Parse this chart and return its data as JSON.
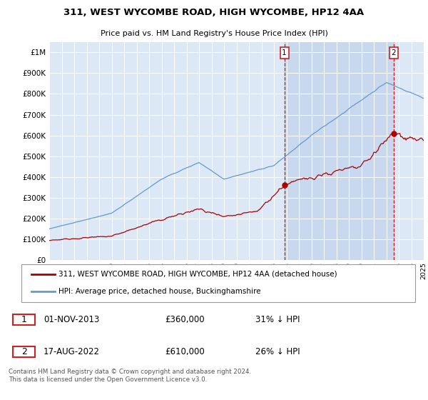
{
  "title": "311, WEST WYCOMBE ROAD, HIGH WYCOMBE, HP12 4AA",
  "subtitle": "Price paid vs. HM Land Registry's House Price Index (HPI)",
  "ylim": [
    0,
    1050000
  ],
  "yticks": [
    0,
    100000,
    200000,
    300000,
    400000,
    500000,
    600000,
    700000,
    800000,
    900000,
    1000000
  ],
  "ytick_labels": [
    "£0",
    "£100K",
    "£200K",
    "£300K",
    "£400K",
    "£500K",
    "£600K",
    "£700K",
    "£800K",
    "£900K",
    "£1M"
  ],
  "background_color": "#ffffff",
  "plot_bg_color": "#dce8f5",
  "grid_color": "#ffffff",
  "hpi_color": "#6699cc",
  "price_color": "#aa0000",
  "vline_color": "#cc0000",
  "shade_color": "#c8d8ee",
  "marker1_month": 226,
  "marker2_month": 331,
  "annotation1": {
    "label": "1",
    "date": "01-NOV-2013",
    "price": "£360,000",
    "note": "31% ↓ HPI"
  },
  "annotation2": {
    "label": "2",
    "date": "17-AUG-2022",
    "price": "£610,000",
    "note": "26% ↓ HPI"
  },
  "legend_line1": "311, WEST WYCOMBE ROAD, HIGH WYCOMBE, HP12 4AA (detached house)",
  "legend_line2": "HPI: Average price, detached house, Buckinghamshire",
  "footer": "Contains HM Land Registry data © Crown copyright and database right 2024.\nThis data is licensed under the Open Government Licence v3.0.",
  "x_start_year": 1995,
  "n_months": 361,
  "xtick_years": [
    1995,
    1996,
    1997,
    1998,
    1999,
    2000,
    2001,
    2002,
    2003,
    2004,
    2005,
    2006,
    2007,
    2008,
    2009,
    2010,
    2011,
    2012,
    2013,
    2014,
    2015,
    2016,
    2017,
    2018,
    2019,
    2020,
    2021,
    2022,
    2023,
    2024,
    2025
  ]
}
